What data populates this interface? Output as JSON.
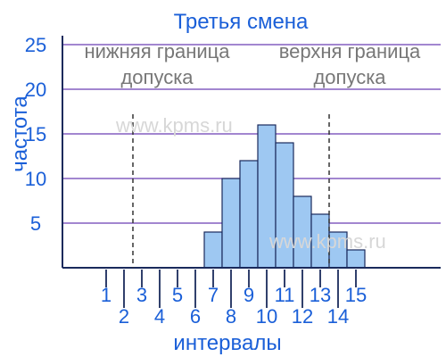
{
  "chart_data": {
    "type": "bar",
    "title": "Третья смена",
    "xlabel": "интервалы",
    "ylabel": "частота",
    "categories": [
      "1",
      "2",
      "3",
      "4",
      "5",
      "6",
      "7",
      "8",
      "9",
      "10",
      "11",
      "12",
      "13",
      "14",
      "15"
    ],
    "values": [
      0,
      0,
      0,
      0,
      0,
      0,
      4,
      10,
      12,
      16,
      14,
      8,
      6,
      4,
      2
    ],
    "ylim": [
      0,
      25
    ],
    "yticks": [
      "5",
      "10",
      "15",
      "20",
      "25"
    ],
    "grid": true,
    "lower_limit": {
      "x": 2.5,
      "label_line1": "нижняя граница",
      "label_line2": "допуска"
    },
    "upper_limit": {
      "x": 13.5,
      "label_line1": "верхня граница",
      "label_line2": "допуска"
    },
    "watermark": "www.kpms.ru",
    "colors": {
      "bar_fill": "#9ec8f2",
      "bar_stroke": "#1a2a5c",
      "grid": "#6a3fb5",
      "text": "#1a5fd8",
      "annotation": "#777777",
      "axis": "#1a2a5c"
    }
  }
}
